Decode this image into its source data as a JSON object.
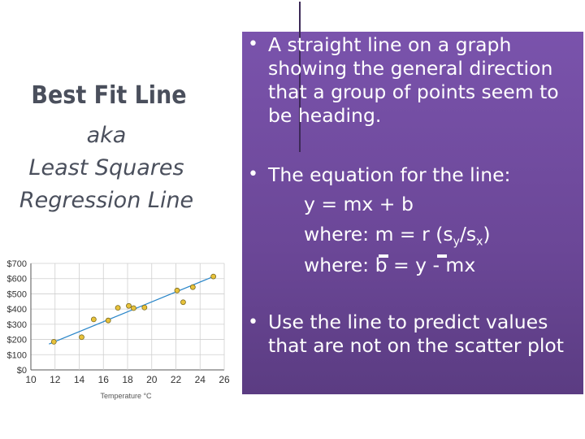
{
  "left": {
    "title": "Best Fit Line",
    "aka": "aka",
    "alt1": "Least Squares",
    "alt2": "Regression Line"
  },
  "right": {
    "b1_l1": "A straight line on a graph",
    "b1_l2": "showing the general direction",
    "b1_l3": "that a group of points seem to",
    "b1_l4": "be heading.",
    "b2_l1": "The equation for the line:",
    "eq1": "y = mx + b",
    "eq2_a": "where: m = r (s",
    "eq2_sub1": "y",
    "eq2_mid": "/s",
    "eq2_sub2": "x",
    "eq2_end": ")",
    "eq3_a": "where: b = y - mx",
    "b3_l1": "Use the line to predict values",
    "b3_l2": "that are not on the scatter plot",
    "bullet": "•"
  },
  "chart_data": {
    "type": "scatter",
    "xlabel": "Temperature °C",
    "ylabel": "",
    "xlim": [
      10,
      26
    ],
    "ylim": [
      0,
      700
    ],
    "x_ticks": [
      "10",
      "12",
      "14",
      "16",
      "18",
      "20",
      "22",
      "24",
      "26"
    ],
    "y_ticks": [
      "$0",
      "$100",
      "$200",
      "$300",
      "$400",
      "$500",
      "$600",
      "$700"
    ],
    "grid": true,
    "points": [
      {
        "x": 11.9,
        "y": 185
      },
      {
        "x": 14.2,
        "y": 215
      },
      {
        "x": 15.2,
        "y": 332
      },
      {
        "x": 16.4,
        "y": 325
      },
      {
        "x": 17.2,
        "y": 408
      },
      {
        "x": 18.1,
        "y": 421
      },
      {
        "x": 18.5,
        "y": 406
      },
      {
        "x": 19.4,
        "y": 410
      },
      {
        "x": 22.1,
        "y": 522
      },
      {
        "x": 22.6,
        "y": 445
      },
      {
        "x": 23.4,
        "y": 544
      },
      {
        "x": 25.1,
        "y": 614
      }
    ],
    "trendline": {
      "x": [
        11.5,
        25.3
      ],
      "y": [
        170,
        620
      ]
    },
    "colors": {
      "points": "#e8c23a",
      "point_stroke": "#7a6a20",
      "trend": "#2a86c9"
    }
  }
}
